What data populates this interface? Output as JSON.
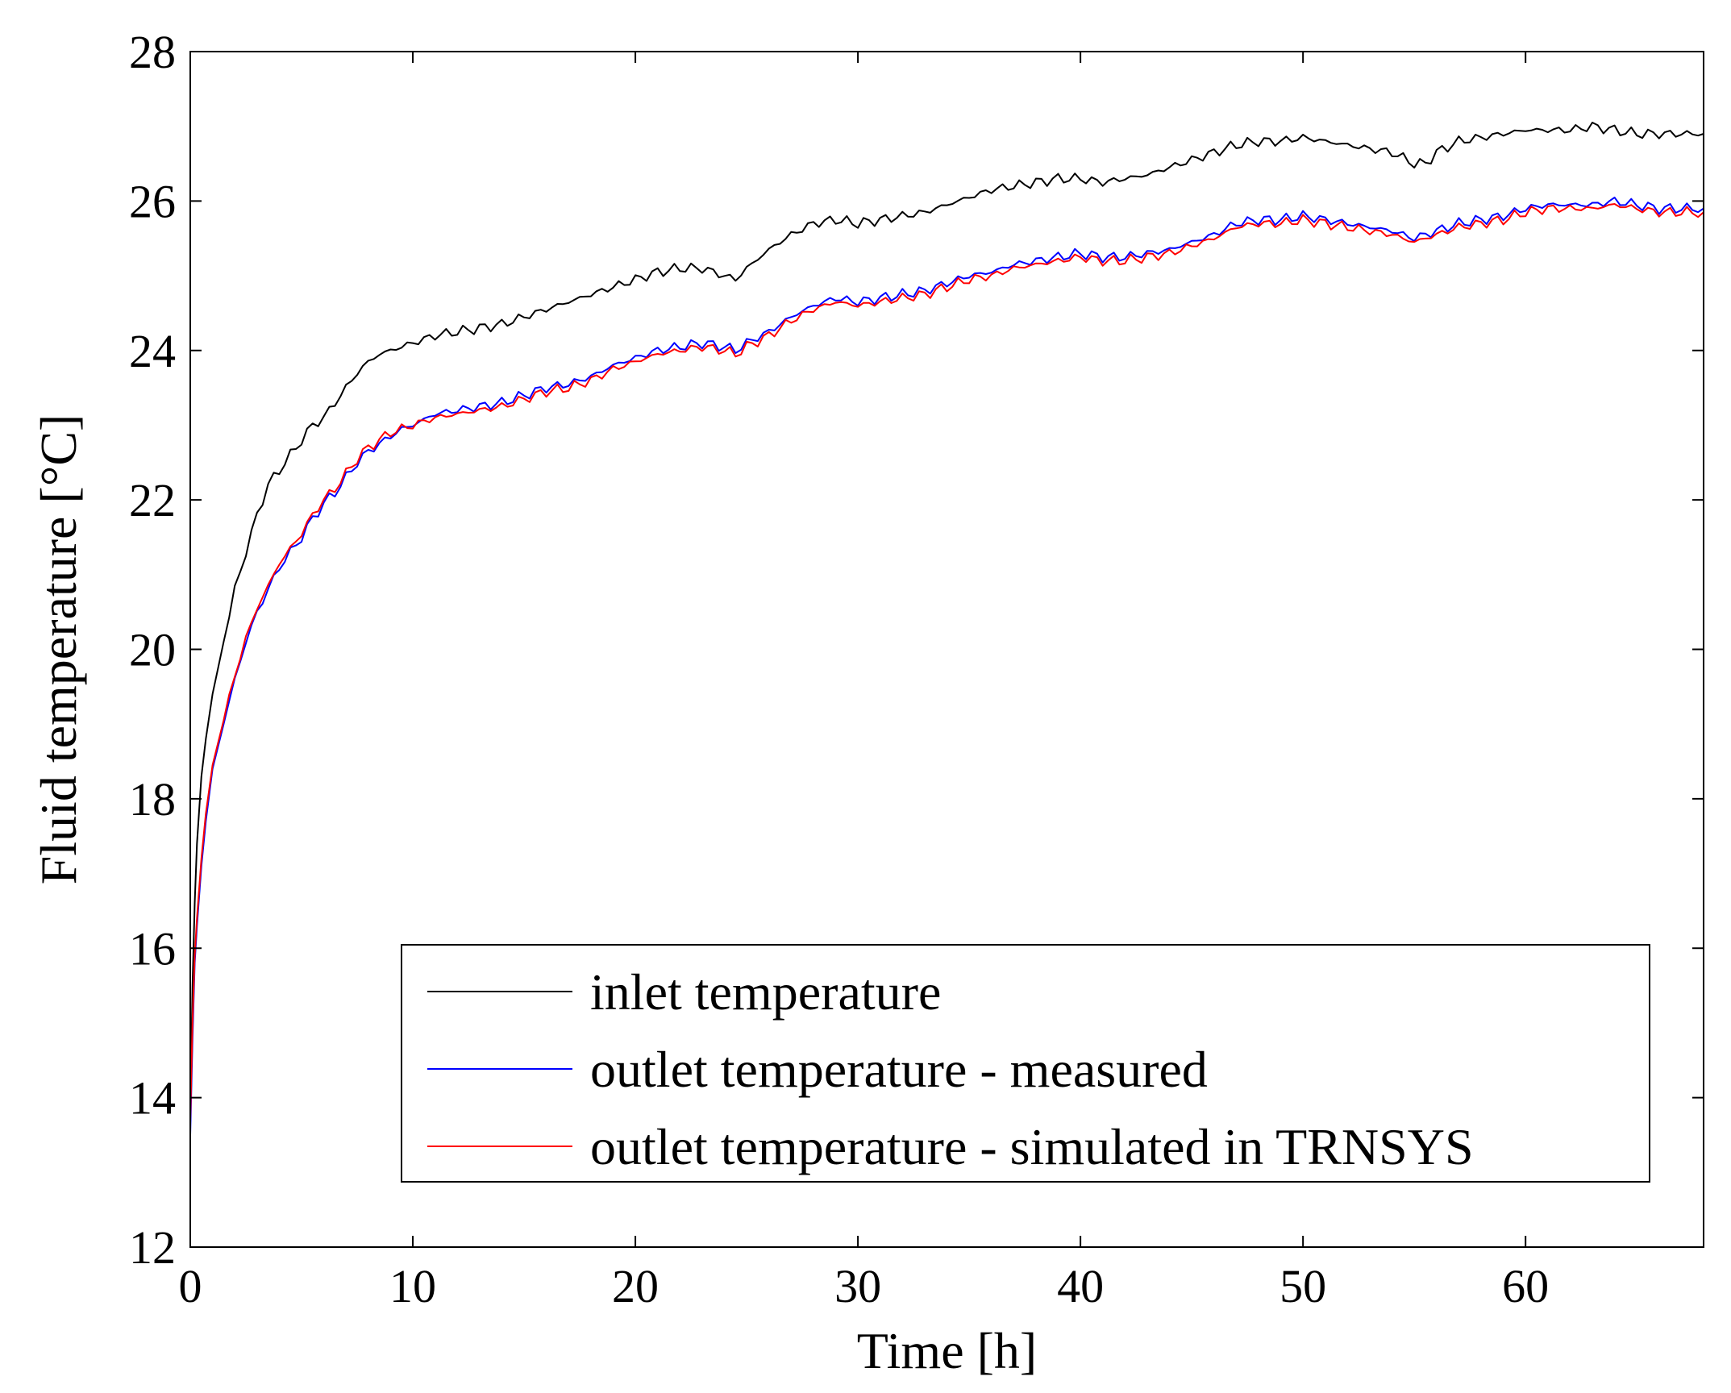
{
  "chart_data": {
    "type": "line",
    "title": "",
    "xlabel": "Time [h]",
    "ylabel": "Fluid temperature [°C]",
    "xlim": [
      0,
      68
    ],
    "ylim": [
      12,
      28
    ],
    "xticks": [
      0,
      10,
      20,
      30,
      40,
      50,
      60
    ],
    "yticks": [
      12,
      14,
      16,
      18,
      20,
      22,
      24,
      26,
      28
    ],
    "xtick_labels": [
      "0",
      "10",
      "20",
      "30",
      "40",
      "50",
      "60"
    ],
    "ytick_labels": [
      "12",
      "14",
      "16",
      "18",
      "20",
      "22",
      "24",
      "26",
      "28"
    ],
    "grid": false,
    "legend_position": "bottom-right",
    "series": [
      {
        "name": "inlet temperature",
        "color": "#000000",
        "x": [
          0,
          0.1,
          0.2,
          0.3,
          0.5,
          0.7,
          1,
          1.5,
          2,
          2.5,
          3,
          3.5,
          4,
          4.5,
          5,
          5.5,
          6,
          6.5,
          7,
          7.5,
          8,
          8.5,
          9,
          9.5,
          10,
          11,
          12,
          13,
          14,
          15,
          16,
          17,
          18,
          19,
          20,
          21,
          22,
          23,
          24,
          24.5,
          25,
          26,
          27,
          28,
          29,
          30,
          31,
          32,
          33,
          34,
          35,
          36,
          37,
          38,
          39,
          40,
          41,
          42,
          43,
          44,
          45,
          46,
          47,
          48,
          49,
          50,
          51,
          52,
          53,
          54,
          55,
          55.5,
          56,
          57,
          58,
          59,
          60,
          61,
          62,
          63,
          64,
          65,
          66,
          67,
          68
        ],
        "values": [
          13.7,
          15.5,
          16.6,
          17.4,
          18.3,
          18.8,
          19.4,
          20.1,
          20.8,
          21.3,
          21.8,
          22.2,
          22.4,
          22.6,
          22.8,
          23.0,
          23.1,
          23.3,
          23.5,
          23.7,
          23.85,
          23.95,
          24.0,
          24.05,
          24.1,
          24.2,
          24.25,
          24.3,
          24.35,
          24.45,
          24.55,
          24.65,
          24.75,
          24.85,
          24.95,
          25.05,
          25.1,
          25.1,
          25.0,
          24.95,
          25.1,
          25.35,
          25.55,
          25.7,
          25.75,
          25.7,
          25.75,
          25.8,
          25.85,
          25.95,
          26.05,
          26.15,
          26.2,
          26.25,
          26.3,
          26.3,
          26.25,
          26.3,
          26.35,
          26.45,
          26.55,
          26.65,
          26.75,
          26.8,
          26.8,
          26.85,
          26.8,
          26.75,
          26.7,
          26.65,
          26.5,
          26.5,
          26.65,
          26.8,
          26.85,
          26.9,
          26.95,
          26.95,
          26.95,
          27.0,
          26.95,
          26.9,
          26.9,
          26.9,
          26.9
        ]
      },
      {
        "name": "outlet temperature - measured",
        "color": "#0000ff",
        "x": [
          0,
          0.1,
          0.2,
          0.3,
          0.5,
          0.7,
          1,
          1.5,
          2,
          2.5,
          3,
          3.5,
          4,
          4.5,
          5,
          5.5,
          6,
          6.5,
          7,
          7.5,
          8,
          8.5,
          9,
          9.5,
          10,
          11,
          12,
          13,
          14,
          15,
          16,
          17,
          18,
          19,
          20,
          21,
          22,
          23,
          24,
          24.5,
          25,
          26,
          27,
          28,
          29,
          30,
          31,
          32,
          33,
          34,
          35,
          36,
          37,
          38,
          39,
          40,
          41,
          42,
          43,
          44,
          45,
          46,
          47,
          48,
          49,
          50,
          51,
          52,
          53,
          54,
          55,
          55.5,
          56,
          57,
          58,
          59,
          60,
          61,
          62,
          63,
          64,
          65,
          66,
          67,
          68
        ],
        "values": [
          13.5,
          14.8,
          15.8,
          16.3,
          17.1,
          17.7,
          18.4,
          19.0,
          19.6,
          20.1,
          20.5,
          20.8,
          21.1,
          21.3,
          21.5,
          21.75,
          21.95,
          22.1,
          22.3,
          22.5,
          22.65,
          22.75,
          22.85,
          22.95,
          23.0,
          23.15,
          23.2,
          23.25,
          23.3,
          23.4,
          23.5,
          23.55,
          23.65,
          23.8,
          23.9,
          24.0,
          24.05,
          24.1,
          24.05,
          24.0,
          24.1,
          24.25,
          24.45,
          24.6,
          24.7,
          24.65,
          24.7,
          24.75,
          24.8,
          24.9,
          25.0,
          25.05,
          25.15,
          25.2,
          25.25,
          25.3,
          25.25,
          25.25,
          25.3,
          25.35,
          25.45,
          25.55,
          25.7,
          25.75,
          25.75,
          25.8,
          25.75,
          25.7,
          25.65,
          25.6,
          25.5,
          25.55,
          25.6,
          25.7,
          25.75,
          25.8,
          25.9,
          25.95,
          25.95,
          25.95,
          26.0,
          25.95,
          25.9,
          25.9,
          25.9
        ]
      },
      {
        "name": "outlet temperature - simulated in TRNSYS",
        "color": "#ff0000",
        "x": [
          0,
          0.1,
          0.2,
          0.3,
          0.5,
          0.7,
          1,
          1.5,
          2,
          2.5,
          3,
          3.5,
          4,
          4.5,
          5,
          5.5,
          6,
          6.5,
          7,
          7.5,
          8,
          8.5,
          9,
          9.5,
          10,
          11,
          12,
          13,
          14,
          15,
          16,
          17,
          18,
          19,
          20,
          21,
          22,
          23,
          24,
          24.5,
          25,
          26,
          27,
          28,
          29,
          30,
          31,
          32,
          33,
          34,
          35,
          36,
          37,
          38,
          39,
          40,
          41,
          42,
          43,
          44,
          45,
          46,
          47,
          48,
          49,
          50,
          51,
          52,
          53,
          54,
          55,
          55.5,
          56,
          57,
          58,
          59,
          60,
          61,
          62,
          63,
          64,
          65,
          66,
          67,
          68
        ],
        "values": [
          13.7,
          15.0,
          15.9,
          16.4,
          17.2,
          17.8,
          18.45,
          19.05,
          19.65,
          20.15,
          20.55,
          20.85,
          21.15,
          21.35,
          21.55,
          21.8,
          22.0,
          22.15,
          22.35,
          22.55,
          22.7,
          22.8,
          22.9,
          22.95,
          23.0,
          23.1,
          23.15,
          23.2,
          23.25,
          23.35,
          23.45,
          23.5,
          23.6,
          23.75,
          23.85,
          23.95,
          24.0,
          24.05,
          24.0,
          23.95,
          24.05,
          24.2,
          24.4,
          24.55,
          24.65,
          24.6,
          24.65,
          24.7,
          24.75,
          24.85,
          24.95,
          25.0,
          25.1,
          25.15,
          25.2,
          25.25,
          25.2,
          25.2,
          25.25,
          25.3,
          25.4,
          25.5,
          25.65,
          25.7,
          25.7,
          25.75,
          25.7,
          25.65,
          25.6,
          25.55,
          25.45,
          25.5,
          25.55,
          25.65,
          25.7,
          25.75,
          25.85,
          25.9,
          25.9,
          25.9,
          25.95,
          25.9,
          25.85,
          25.85,
          25.85
        ]
      }
    ]
  }
}
